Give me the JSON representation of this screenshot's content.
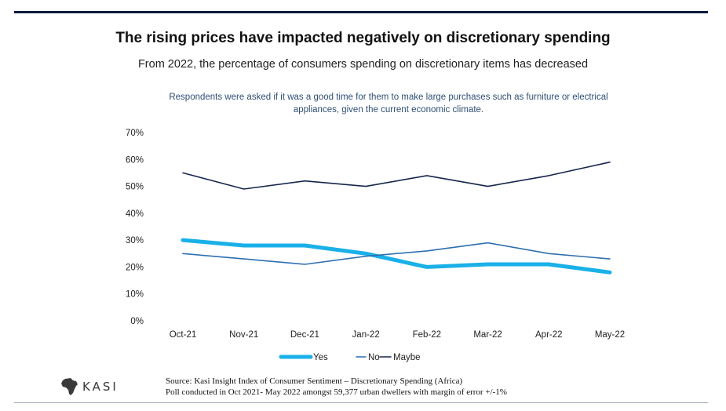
{
  "chart_data": {
    "type": "line",
    "title": "The rising prices have impacted negatively on discretionary spending",
    "subtitle": "From 2022, the percentage of consumers spending on discretionary items has decreased",
    "question": "Respondents were asked if it was a good time for them to make large purchases such as furniture or electrical appliances, given the current economic climate.",
    "categories": [
      "Oct-21",
      "Nov-21",
      "Dec-21",
      "Jan-22",
      "Feb-22",
      "Mar-22",
      "Apr-22",
      "May-22"
    ],
    "y_ticks": [
      "0%",
      "10%",
      "20%",
      "30%",
      "40%",
      "50%",
      "60%",
      "70%"
    ],
    "ylim": [
      0,
      70
    ],
    "xlabel": "",
    "ylabel": "",
    "grid": false,
    "legend_position": "bottom",
    "series": [
      {
        "name": "Yes",
        "color": "#1ab0e8",
        "values": [
          30,
          28,
          28,
          25,
          20,
          21,
          21,
          18
        ]
      },
      {
        "name": "No",
        "color": "#2e6fb0",
        "values": [
          25,
          23,
          21,
          24,
          26,
          29,
          25,
          23
        ]
      },
      {
        "name": "Maybe",
        "color": "#16264d",
        "values": [
          55,
          49,
          52,
          50,
          54,
          50,
          54,
          59
        ]
      }
    ]
  },
  "logo": {
    "text": "KASI"
  },
  "source": {
    "line1": "Source: Kasi Insight Index of Consumer Sentiment – Discretionary Spending (Africa)",
    "line2": "Poll conducted in Oct 2021- May 2022 amongst 59,377 urban dwellers with margin of error +/-1%"
  }
}
